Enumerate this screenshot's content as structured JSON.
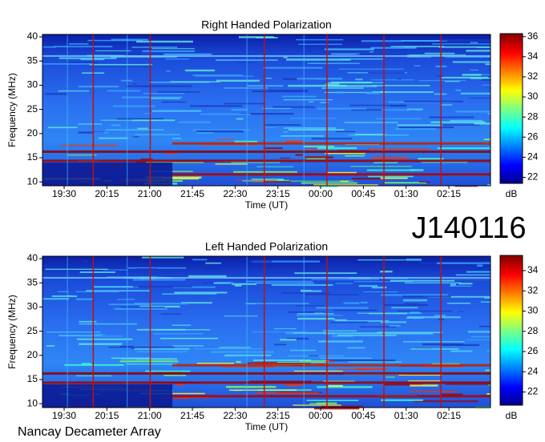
{
  "label": "J140116",
  "footer": "Nancay Decameter Array",
  "chart_data": [
    {
      "type": "heatmap",
      "title": "Right Handed Polarization",
      "xlabel": "Time (UT)",
      "ylabel": "Frequency (MHz)",
      "xlim": [
        19.12,
        26.98
      ],
      "xticks": [
        {
          "value": 19.5,
          "label": "19:30"
        },
        {
          "value": 20.25,
          "label": "20:15"
        },
        {
          "value": 21,
          "label": "21:00"
        },
        {
          "value": 21.75,
          "label": "21:45"
        },
        {
          "value": 22.5,
          "label": "22:30"
        },
        {
          "value": 23.25,
          "label": "23:15"
        },
        {
          "value": 24,
          "label": "00:00"
        },
        {
          "value": 24.75,
          "label": "00:45"
        },
        {
          "value": 25.5,
          "label": "01:30"
        },
        {
          "value": 26.25,
          "label": "02:15"
        }
      ],
      "ylim": [
        9.2,
        40.5
      ],
      "yticks": [
        10,
        15,
        20,
        25,
        30,
        35,
        40
      ],
      "colormap": "jet",
      "zlim": [
        21.4,
        36.3
      ],
      "zticks": [
        22,
        24,
        26,
        28,
        30,
        32,
        34,
        36
      ],
      "zlabel": "dB"
    },
    {
      "type": "heatmap",
      "title": "Left Handed Polarization",
      "xlabel": "Time (UT)",
      "ylabel": "Frequency (MHz)",
      "xlim": [
        19.12,
        26.98
      ],
      "xticks": [
        {
          "value": 19.5,
          "label": "19:30"
        },
        {
          "value": 20.25,
          "label": "20:15"
        },
        {
          "value": 21,
          "label": "21:00"
        },
        {
          "value": 21.75,
          "label": "21:45"
        },
        {
          "value": 22.5,
          "label": "22:30"
        },
        {
          "value": 23.25,
          "label": "23:15"
        },
        {
          "value": 24,
          "label": "00:00"
        },
        {
          "value": 24.75,
          "label": "00:45"
        },
        {
          "value": 25.5,
          "label": "01:30"
        },
        {
          "value": 26.25,
          "label": "02:15"
        }
      ],
      "ylim": [
        9.2,
        40.5
      ],
      "yticks": [
        10,
        15,
        20,
        25,
        30,
        35,
        40
      ],
      "colormap": "jet",
      "zlim": [
        20.7,
        35.5
      ],
      "zticks": [
        22,
        24,
        26,
        28,
        30,
        32,
        34
      ],
      "zlabel": "dB"
    }
  ]
}
